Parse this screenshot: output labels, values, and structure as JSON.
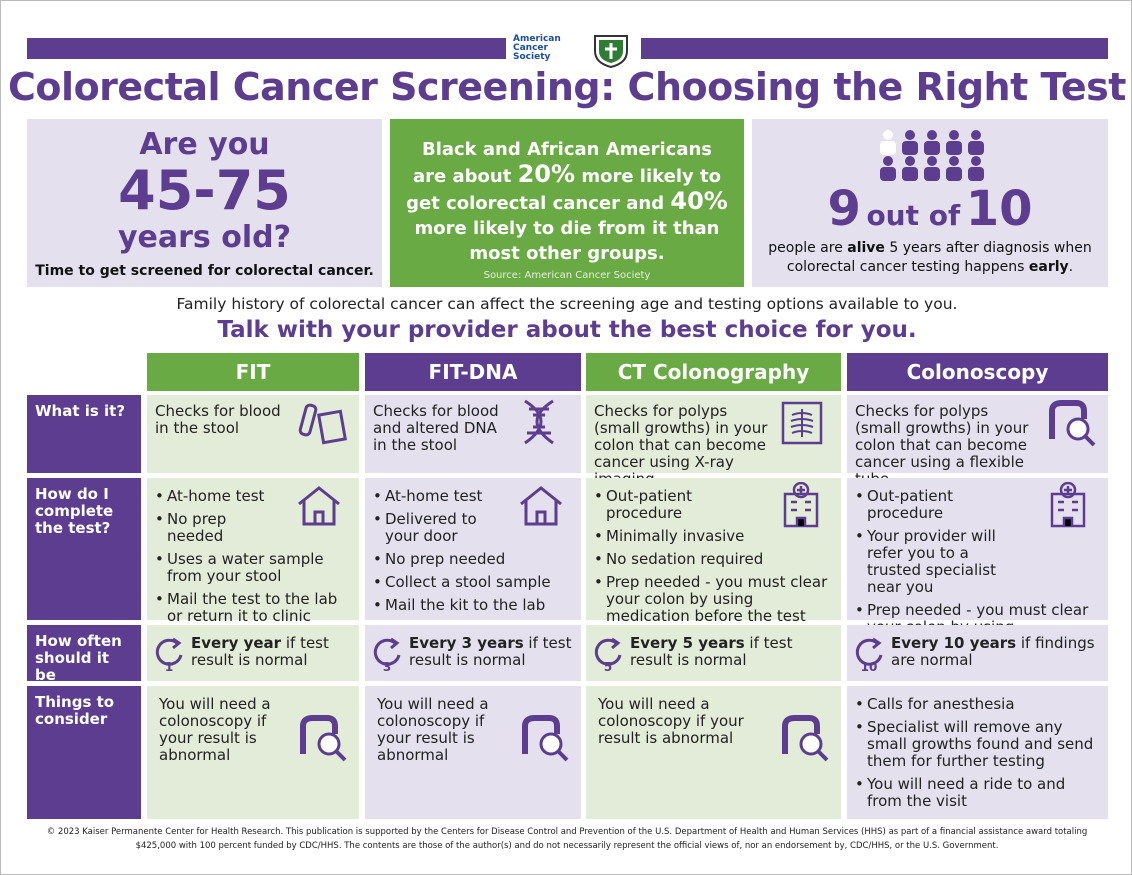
{
  "header": {
    "logo_text": "American Cancer Society",
    "title": "Colorectal Cancer Screening: Choosing the Right Test"
  },
  "age_box": {
    "line1": "Are you",
    "age": "45-75",
    "line3": "years old?",
    "note": "Time to get screened for colorectal cancer."
  },
  "stat_box": {
    "parts": [
      "Black and African Americans are about ",
      "20%",
      " more likely to get colorectal cancer and ",
      "40%",
      " more likely to die from it than most other groups."
    ],
    "source": "Source: American Cancer Society"
  },
  "survival_box": {
    "num1": "9",
    "middle": "out of",
    "num2": "10",
    "parts": [
      "people are ",
      "alive",
      " 5 years after diagnosis when colorectal cancer testing happens ",
      "early",
      "."
    ]
  },
  "family_note": "Family history of colorectal cancer can affect the screening age and testing options available to you.",
  "talk": "Talk with your provider about the best choice for you.",
  "table": {
    "columns": [
      "FIT",
      "FIT-DNA",
      "CT Colonography",
      "Colonoscopy"
    ],
    "rows": [
      {
        "label": "What is it?",
        "cells": [
          {
            "text": "Checks for blood in the stool"
          },
          {
            "text": "Checks for blood and altered DNA in the stool"
          },
          {
            "text": "Checks for polyps (small growths) in your colon that can become cancer using X-ray imaging"
          },
          {
            "text": "Checks for polyps (small growths) in your colon that can become cancer using a flexible tube"
          }
        ]
      },
      {
        "label": "How do I complete the test?",
        "cells": [
          {
            "items": [
              "At-home test",
              "No prep needed",
              "Uses a water sample from your stool",
              "Mail the test to the lab or return it to clinic"
            ]
          },
          {
            "items": [
              "At-home test",
              "Delivered to your door",
              "No prep needed",
              "Collect a stool sample",
              "Mail the kit to the lab"
            ]
          },
          {
            "items": [
              "Out-patient procedure",
              "Minimally invasive",
              "No sedation required",
              "Prep needed - you must clear your colon by using medication before the test"
            ]
          },
          {
            "items": [
              "Out-patient procedure",
              "Your provider will refer you to a trusted specialist near you",
              "Prep needed - you must clear your colon by using medication before the test"
            ]
          }
        ]
      },
      {
        "label": "How often should it be repeated?",
        "cells": [
          {
            "icon_number": "1",
            "bold": "Every year",
            "text": " if test result is normal"
          },
          {
            "icon_number": "3",
            "bold": "Every 3 years",
            "text": " if test result is normal"
          },
          {
            "icon_number": "5",
            "bold": "Every 5 years",
            "text": " if test result is normal"
          },
          {
            "icon_number": "10",
            "bold": "Every 10 years",
            "text": " if findings are normal"
          }
        ]
      },
      {
        "label": "Things to consider",
        "cells": [
          {
            "text": "You will need a colonoscopy if your result is abnormal"
          },
          {
            "text": "You will need a colonoscopy if your result is abnormal"
          },
          {
            "text": "You will need a colonoscopy if your result is abnormal"
          },
          {
            "items": [
              "Calls for anesthesia",
              "Specialist will remove any small growths found and send them for further testing",
              "You will need a ride to and from the visit"
            ]
          }
        ]
      }
    ]
  },
  "footer": "© 2023 Kaiser Permanente Center for Health Research. This publication is supported by the Centers for Disease Control and Prevention of the U.S. Department of Health and Human Services (HHS) as part of a financial assistance award totaling $425,000 with 100 percent funded by CDC/HHS. The contents are those of the author(s) and do not necessarily represent the official views of, nor an endorsement by, CDC/HHS, or the U.S. Government."
}
